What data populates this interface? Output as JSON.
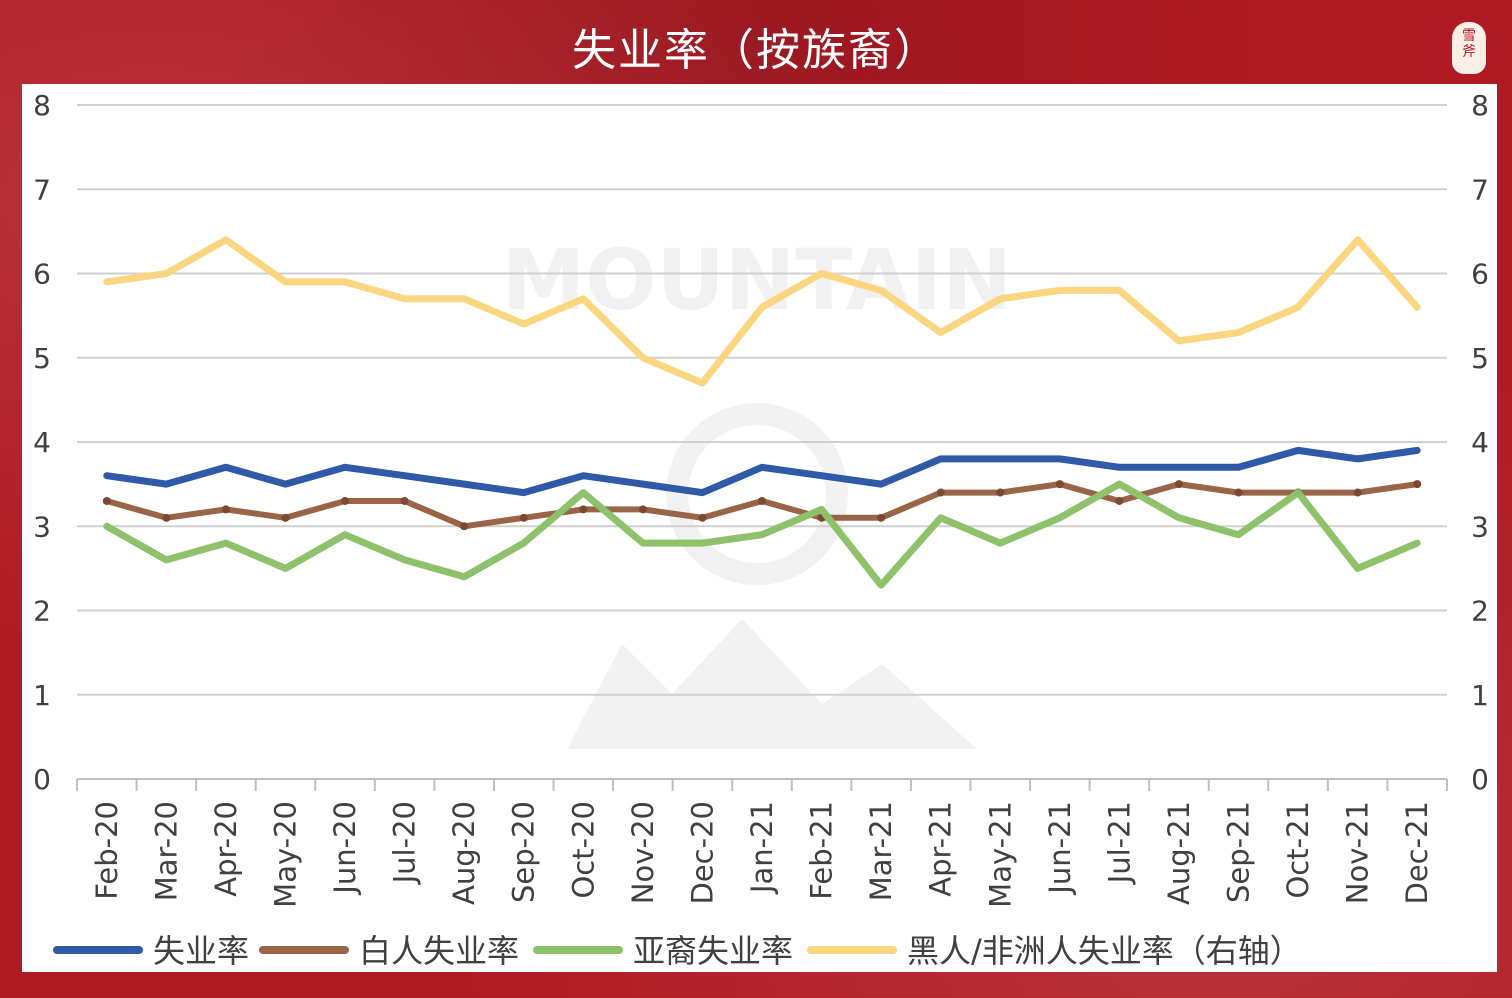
{
  "chart_data": {
    "type": "line",
    "title": "失业率（按族裔）",
    "x": [
      "Feb-20",
      "Mar-20",
      "Apr-20",
      "May-20",
      "Jun-20",
      "Jul-20",
      "Aug-20",
      "Sep-20",
      "Oct-20",
      "Nov-20",
      "Dec-20",
      "Jan-21",
      "Feb-21",
      "Mar-21",
      "Apr-21",
      "May-21",
      "Jun-21",
      "Jul-21",
      "Aug-21",
      "Sep-21",
      "Oct-21",
      "Nov-21",
      "Dec-21"
    ],
    "ylim": [
      0,
      8
    ],
    "y2lim": [
      0,
      8
    ],
    "yticks": [
      "0",
      "1",
      "2",
      "3",
      "4",
      "5",
      "6",
      "7",
      "8"
    ],
    "grid": true,
    "legend_position": "bottom",
    "series": [
      {
        "name": "失业率",
        "axis": "left",
        "color": "#2e5aa8",
        "values": [
          3.6,
          3.5,
          3.7,
          3.5,
          3.7,
          3.6,
          3.5,
          3.4,
          3.6,
          3.5,
          3.4,
          3.7,
          3.6,
          3.5,
          3.8,
          3.8,
          3.8,
          3.7,
          3.7,
          3.7,
          3.9,
          3.8,
          3.9
        ]
      },
      {
        "name": "白人失业率",
        "axis": "left",
        "color": "#9a6447",
        "values": [
          3.3,
          3.1,
          3.2,
          3.1,
          3.3,
          3.3,
          3.0,
          3.1,
          3.2,
          3.2,
          3.1,
          3.3,
          3.1,
          3.1,
          3.4,
          3.4,
          3.5,
          3.3,
          3.5,
          3.4,
          3.4,
          3.4,
          3.5
        ]
      },
      {
        "name": "亚裔失业率",
        "axis": "left",
        "color": "#8dc26b",
        "values": [
          3.0,
          2.6,
          2.8,
          2.5,
          2.9,
          2.6,
          2.4,
          2.8,
          3.4,
          2.8,
          2.8,
          2.9,
          3.2,
          2.3,
          3.1,
          2.8,
          3.1,
          3.5,
          3.1,
          2.9,
          3.4,
          2.5,
          2.8
        ]
      },
      {
        "name": "黑人/非洲人失业率（右轴）",
        "axis": "right",
        "color": "#fbd680",
        "values": [
          5.9,
          6.0,
          6.4,
          5.9,
          5.9,
          5.7,
          5.7,
          5.4,
          5.7,
          5.0,
          4.7,
          5.6,
          6.0,
          5.8,
          5.3,
          5.7,
          5.8,
          5.8,
          5.2,
          5.3,
          5.6,
          6.4,
          5.6
        ]
      }
    ]
  },
  "seal_text": "雪斧"
}
